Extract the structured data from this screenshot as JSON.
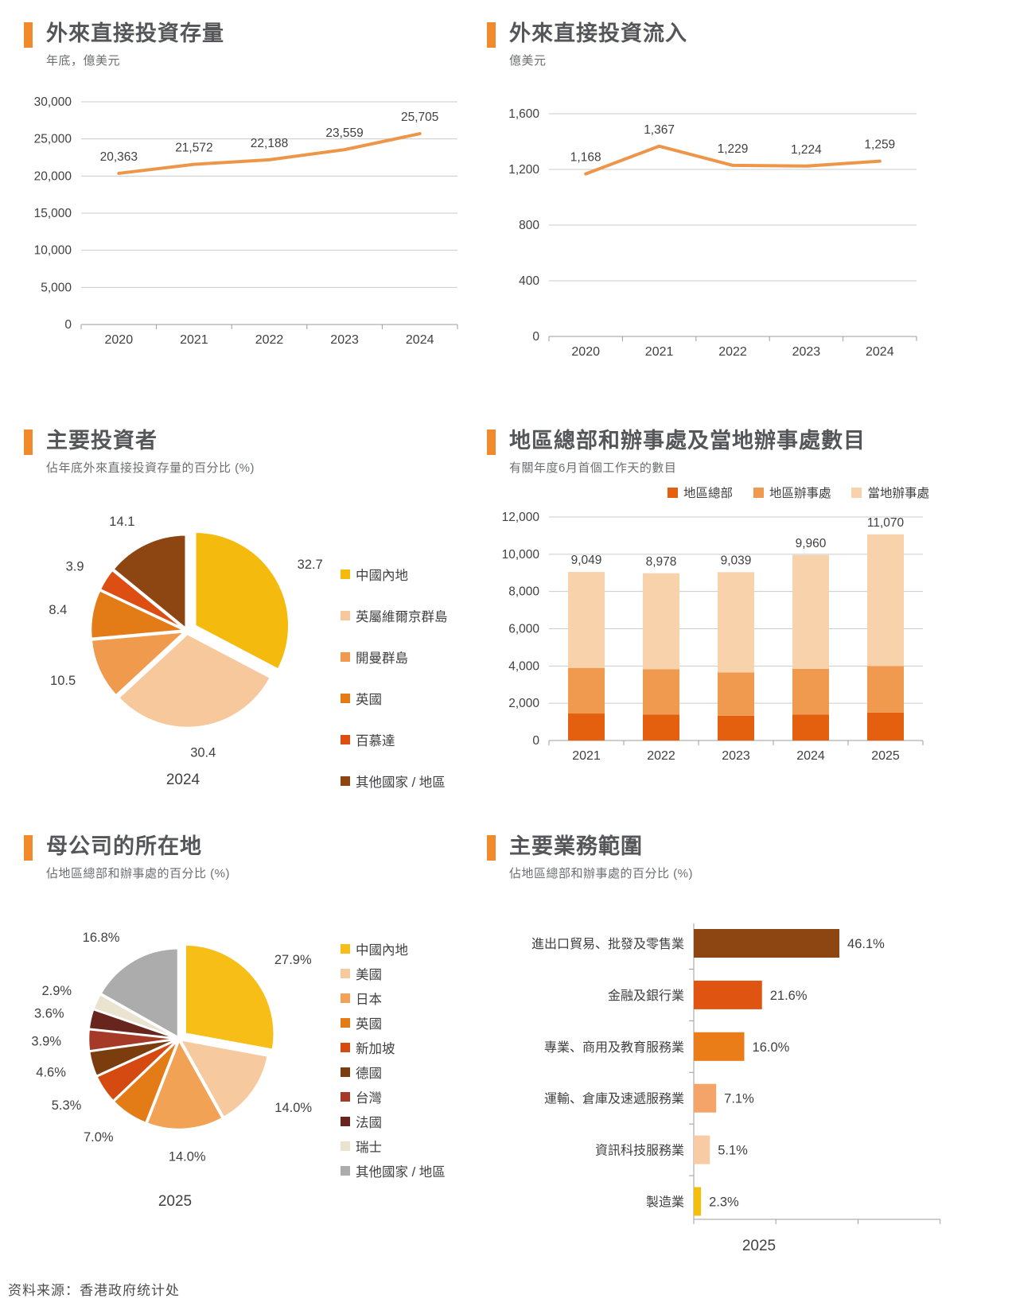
{
  "theme": {
    "accent": "#F18A2B",
    "title_color": "#55565A",
    "subtitle_color": "#6D6E71",
    "label_color": "#414042",
    "grid_color": "#CBCBCB",
    "axis_color": "#9E9EA2",
    "line_color": "#ED9649"
  },
  "chart_data": [
    {
      "id": "fdi-stock",
      "type": "line",
      "title": "外來直接投資存量",
      "subtitle": "年底，億美元",
      "categories": [
        "2020",
        "2021",
        "2022",
        "2023",
        "2024"
      ],
      "values": [
        20363,
        21572,
        22188,
        23559,
        25705
      ],
      "data_labels": [
        "20,363",
        "21,572",
        "22,188",
        "23,559",
        "25,705"
      ],
      "ylim": [
        0,
        30000
      ],
      "ystep": 5000,
      "ytick_labels": [
        "0",
        "5,000",
        "10,000",
        "15,000",
        "20,000",
        "25,000",
        "30,000"
      ],
      "grid": true,
      "line_color": "#ED9649"
    },
    {
      "id": "fdi-inflow",
      "type": "line",
      "title": "外來直接投資流入",
      "subtitle": "億美元",
      "categories": [
        "2020",
        "2021",
        "2022",
        "2023",
        "2024"
      ],
      "values": [
        1168,
        1367,
        1229,
        1224,
        1259
      ],
      "data_labels": [
        "1,168",
        "1,367",
        "1,229",
        "1,224",
        "1,259"
      ],
      "ylim": [
        0,
        1600
      ],
      "ystep": 400,
      "ytick_labels": [
        "0",
        "400",
        "800",
        "1,200",
        "1,600"
      ],
      "grid": true,
      "line_color": "#ED9649"
    },
    {
      "id": "major-investors",
      "type": "pie",
      "title": "主要投資者",
      "subtitle": "佔年底外來直接投資存量的百分比 (%)",
      "year_label": "2024",
      "slices": [
        {
          "label": "中國內地",
          "value": 32.7,
          "display": "32.7",
          "color": "#F5BA0E",
          "explode": 12
        },
        {
          "label": "英屬維爾京群島",
          "value": 30.4,
          "display": "30.4",
          "color": "#F6C89C",
          "explode": 4
        },
        {
          "label": "開曼群島",
          "value": 10.5,
          "display": "10.5",
          "color": "#EF9A4D",
          "explode": 3
        },
        {
          "label": "英國",
          "value": 8.4,
          "display": "8.4",
          "color": "#E37B17",
          "explode": 3
        },
        {
          "label": "百慕達",
          "value": 3.9,
          "display": "3.9",
          "color": "#DC4E12",
          "explode": 3
        },
        {
          "label": "其他國家 / 地區",
          "value": 14.1,
          "display": "14.1",
          "color": "#8D4512",
          "explode": 3
        }
      ],
      "legend_position": "right"
    },
    {
      "id": "rhq-offices",
      "type": "stacked_bar",
      "title": "地區總部和辦事處及當地辦事處數目",
      "subtitle": "有關年度6月首個工作天的數目",
      "categories": [
        "2021",
        "2022",
        "2023",
        "2024",
        "2025"
      ],
      "series": [
        {
          "name": "地區總部",
          "color": "#E4600E",
          "values": [
            1450,
            1400,
            1330,
            1400,
            1500
          ]
        },
        {
          "name": "地區辦事處",
          "color": "#F09A50",
          "values": [
            2450,
            2430,
            2320,
            2450,
            2500
          ]
        },
        {
          "name": "當地辦事處",
          "color": "#F8D2AB",
          "values": [
            5149,
            5148,
            5389,
            6110,
            7070
          ]
        }
      ],
      "totals": [
        9049,
        8978,
        9039,
        9960,
        11070
      ],
      "total_labels": [
        "9,049",
        "8,978",
        "9,039",
        "9,960",
        "11,070"
      ],
      "ylim": [
        0,
        12000
      ],
      "ystep": 2000,
      "ytick_labels": [
        "0",
        "2,000",
        "4,000",
        "6,000",
        "8,000",
        "10,000",
        "12,000"
      ],
      "grid": true,
      "legend_position": "top"
    },
    {
      "id": "parent-location",
      "type": "pie",
      "title": "母公司的所在地",
      "subtitle": "佔地區總部和辦事處的百分比 (%)",
      "year_label": "2025",
      "slices": [
        {
          "label": "中國內地",
          "value": 27.9,
          "display": "27.9%",
          "color": "#F6BE16",
          "explode": 10
        },
        {
          "label": "美國",
          "value": 14.0,
          "display": "14.0%",
          "color": "#F6CA9E",
          "explode": 2
        },
        {
          "label": "日本",
          "value": 14.0,
          "display": "14.0%",
          "color": "#F2A254",
          "explode": 2
        },
        {
          "label": "英國",
          "value": 7.0,
          "display": "7.0%",
          "color": "#E37B17",
          "explode": 2
        },
        {
          "label": "新加坡",
          "value": 5.3,
          "display": "5.3%",
          "color": "#D44A10",
          "explode": 2
        },
        {
          "label": "德國",
          "value": 4.6,
          "display": "4.6%",
          "color": "#7C3D0E",
          "explode": 2
        },
        {
          "label": "台灣",
          "value": 3.9,
          "display": "3.9%",
          "color": "#A63A28",
          "explode": 2
        },
        {
          "label": "法國",
          "value": 3.6,
          "display": "3.6%",
          "color": "#67251D",
          "explode": 2
        },
        {
          "label": "瑞士",
          "value": 2.9,
          "display": "2.9%",
          "color": "#E9E3D0",
          "explode": 2
        },
        {
          "label": "其他國家 / 地區",
          "value": 16.8,
          "display": "16.8%",
          "color": "#ACACAC",
          "explode": 2
        }
      ],
      "legend_position": "right"
    },
    {
      "id": "business-lines",
      "type": "hbar",
      "title": "主要業務範圍",
      "subtitle": "佔地區總部和辦事處的百分比 (%)",
      "year_label": "2025",
      "bars": [
        {
          "label": "進出口貿易、批發及零售業",
          "value": 46.1,
          "display": "46.1%",
          "color": "#8D4512"
        },
        {
          "label": "金融及銀行業",
          "value": 21.6,
          "display": "21.6%",
          "color": "#DF5411"
        },
        {
          "label": "專業、商用及教育服務業",
          "value": 16.0,
          "display": "16.0%",
          "color": "#EB7D18"
        },
        {
          "label": "運輸、倉庫及速遞服務業",
          "value": 7.1,
          "display": "7.1%",
          "color": "#F4A469"
        },
        {
          "label": "資訊科技服務業",
          "value": 5.1,
          "display": "5.1%",
          "color": "#F7CBA3"
        },
        {
          "label": "製造業",
          "value": 2.3,
          "display": "2.3%",
          "color": "#F2BF0D"
        }
      ],
      "xlim": [
        0,
        78
      ]
    }
  ],
  "footer": {
    "source_note": "资料来源：香港政府统计处"
  }
}
